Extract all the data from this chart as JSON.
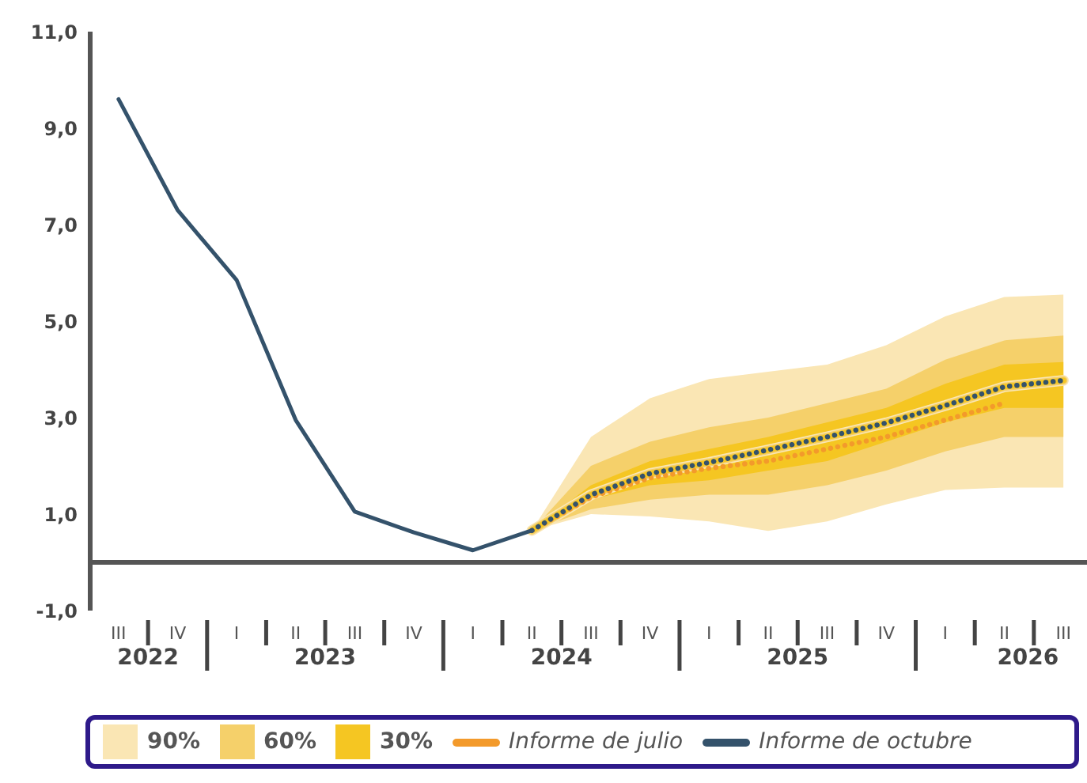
{
  "chart_data": {
    "type": "line",
    "categories": [
      "III",
      "IV",
      "I",
      "II",
      "III",
      "IV",
      "I",
      "II",
      "III",
      "IV",
      "I",
      "II",
      "III",
      "IV",
      "I",
      "II",
      "III"
    ],
    "series": [
      {
        "name": "90%",
        "color": "#fae6b4",
        "values": [
          null,
          null,
          null,
          null,
          null,
          null,
          null,
          0.66,
          1.4,
          1.84,
          2.07,
          2.33,
          2.6,
          2.89,
          3.25,
          3.64,
          3.77
        ],
        "lower": [
          null,
          null,
          null,
          null,
          null,
          null,
          null,
          0.66,
          1.0,
          0.95,
          0.85,
          0.65,
          0.85,
          1.2,
          1.5,
          1.55,
          1.55
        ],
        "upper": [
          null,
          null,
          null,
          null,
          null,
          null,
          null,
          0.66,
          2.6,
          3.4,
          3.8,
          3.95,
          4.1,
          4.5,
          5.1,
          5.5,
          5.55
        ]
      },
      {
        "name": "60%",
        "color": "#f5d06a",
        "values": [
          null,
          null,
          null,
          null,
          null,
          null,
          null,
          0.66,
          1.4,
          1.84,
          2.07,
          2.33,
          2.6,
          2.89,
          3.25,
          3.64,
          3.77
        ],
        "lower": [
          null,
          null,
          null,
          null,
          null,
          null,
          null,
          0.66,
          1.1,
          1.3,
          1.4,
          1.4,
          1.6,
          1.9,
          2.3,
          2.6,
          2.6
        ],
        "upper": [
          null,
          null,
          null,
          null,
          null,
          null,
          null,
          0.66,
          2.0,
          2.5,
          2.8,
          3.0,
          3.3,
          3.6,
          4.2,
          4.6,
          4.7
        ]
      },
      {
        "name": "30%",
        "color": "#f5c622",
        "values": [
          null,
          null,
          null,
          null,
          null,
          null,
          null,
          0.66,
          1.4,
          1.84,
          2.07,
          2.33,
          2.6,
          2.89,
          3.25,
          3.64,
          3.77
        ],
        "lower": [
          null,
          null,
          null,
          null,
          null,
          null,
          null,
          0.66,
          1.3,
          1.6,
          1.7,
          1.9,
          2.1,
          2.5,
          2.9,
          3.2,
          3.2
        ],
        "upper": [
          null,
          null,
          null,
          null,
          null,
          null,
          null,
          0.66,
          1.6,
          2.1,
          2.35,
          2.6,
          2.9,
          3.2,
          3.7,
          4.1,
          4.15
        ]
      },
      {
        "name": "Informe de julio",
        "color": "#f39a2b",
        "line_style": "dotted",
        "values": [
          null,
          null,
          null,
          null,
          null,
          null,
          null,
          0.66,
          1.35,
          1.75,
          1.95,
          2.1,
          2.35,
          2.6,
          2.95,
          3.3,
          null
        ]
      },
      {
        "name": "Informe de octubre",
        "color": "#34526b",
        "line_style": "solid",
        "values": [
          9.6,
          7.3,
          5.85,
          2.95,
          1.05,
          0.62,
          0.25,
          0.66,
          null,
          null,
          null,
          null,
          null,
          null,
          null,
          null,
          null
        ]
      },
      {
        "color": "#34526b",
        "line_style": "dotted",
        "values": [
          null,
          null,
          null,
          null,
          null,
          null,
          null,
          0.66,
          1.4,
          1.84,
          2.07,
          2.33,
          2.6,
          2.89,
          3.25,
          3.64,
          3.77
        ]
      }
    ],
    "ylim": [
      -1,
      11
    ],
    "yticks": [
      {
        "value": -1,
        "label": "-1,0"
      },
      {
        "value": 1,
        "label": "1,0"
      },
      {
        "value": 3,
        "label": "3,0"
      },
      {
        "value": 5,
        "label": "5,0"
      },
      {
        "value": 7,
        "label": "7,0"
      },
      {
        "value": 9,
        "label": "9,0"
      },
      {
        "value": 11,
        "label": "11,0"
      }
    ],
    "ref_lines": [
      {
        "axis": "y",
        "value": 0,
        "color": "#555555"
      }
    ],
    "annotations": [
      "2022",
      "2023",
      "2024",
      "2025",
      "2026"
    ],
    "marker": "none",
    "legend": "bottom"
  }
}
